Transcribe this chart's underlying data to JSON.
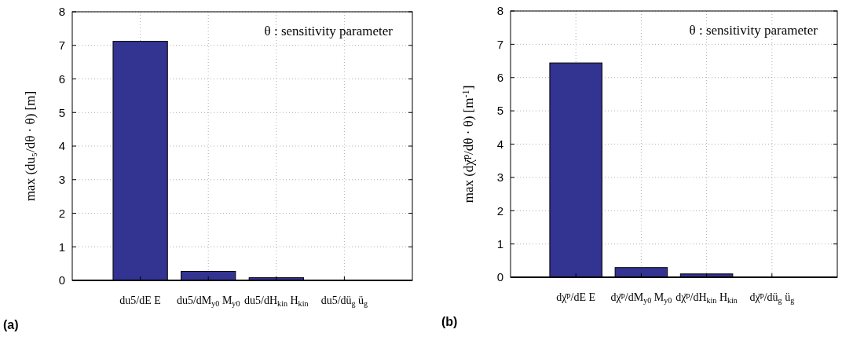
{
  "chart_data": [
    {
      "type": "bar",
      "title": "(a)",
      "ylabel": "max (du₅/dθ · θ)  [m]",
      "categories": [
        "du5/dE E",
        "du5/dM$_{y0}$ M$_{y0}$",
        "du5/dH$_{kin}$ H$_{kin}$",
        "du5/dü$_{g}$ ü$_{g}$"
      ],
      "values": [
        7.12,
        0.27,
        0.08,
        0
      ],
      "color": "#333391",
      "ylim": [
        0,
        8
      ],
      "yticks": [
        0,
        1,
        2,
        3,
        4,
        5,
        6,
        7,
        8
      ],
      "grid": true,
      "annotations": [
        "θ : sensitivity parameter"
      ]
    },
    {
      "type": "bar",
      "title": "(b)",
      "ylabel": "max (dχ̄$^{p}$/dθ · θ) [m$^{-1}$]",
      "categories": [
        "dχ̄$^{p}$/dE E",
        "dχ̄$^{p}$/dM$_{y0}$ M$_{y0}$",
        "dχ̄$^{p}$/dH$_{kin}$ H$_{kin}$",
        "dχ̄$^{p}$/dü$_{g}$ ü$_{g}$"
      ],
      "values": [
        6.44,
        0.29,
        0.1,
        0
      ],
      "color": "#333391",
      "ylim": [
        0,
        8
      ],
      "yticks": [
        0,
        1,
        2,
        3,
        4,
        5,
        6,
        7,
        8
      ],
      "grid": true,
      "annotations": [
        "θ : sensitivity parameter"
      ]
    }
  ]
}
